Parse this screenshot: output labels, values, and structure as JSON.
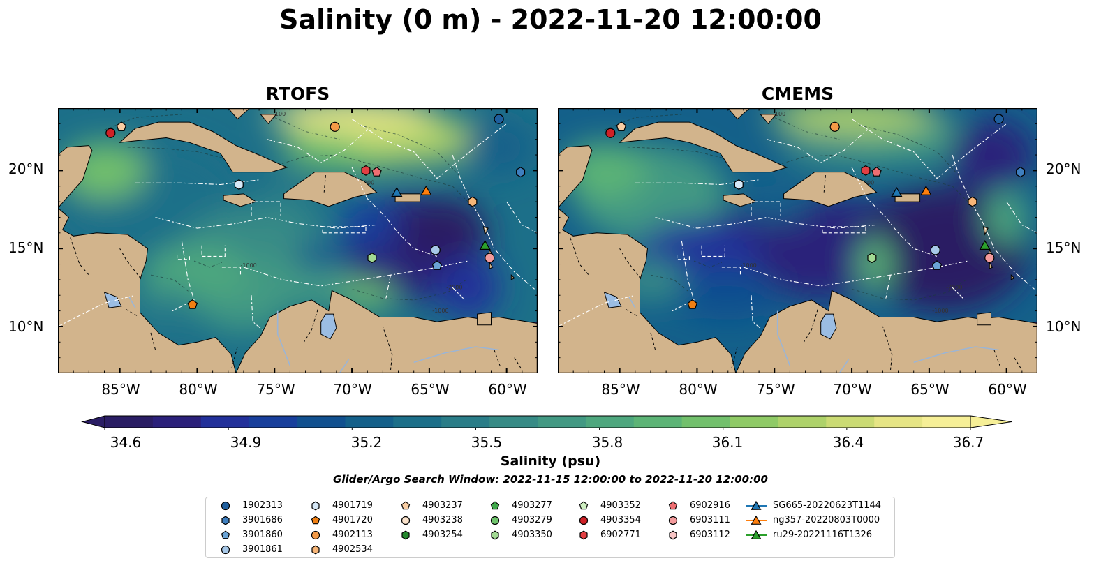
{
  "title": "Salinity (0 m) - 2022-11-20 12:00:00",
  "panels": [
    {
      "title": "RTOFS"
    },
    {
      "title": "CMEMS"
    }
  ],
  "axes": {
    "lat_labels": [
      "20°N",
      "15°N",
      "10°N"
    ],
    "lon_labels": [
      "85°W",
      "80°W",
      "75°W",
      "70°W",
      "65°W",
      "60°W"
    ]
  },
  "colorbar": {
    "label": "Salinity (psu)",
    "ticks": [
      "34.6",
      "34.9",
      "35.2",
      "35.5",
      "35.8",
      "36.1",
      "36.4",
      "36.7"
    ],
    "range": [
      34.6,
      36.7
    ],
    "extend": "both",
    "colormap": "haline",
    "colors": [
      "#2a1d64",
      "#2b207a",
      "#22309a",
      "#183f9c",
      "#11508f",
      "#14608a",
      "#1c6f89",
      "#2a7d88",
      "#378b86",
      "#429983",
      "#4ea77e",
      "#5cb476",
      "#72c06c",
      "#8fca66",
      "#aed26a",
      "#cbdb74",
      "#e6e585",
      "#f6ef97"
    ]
  },
  "search_window": "Glider/Argo Search Window: 2022-11-15 12:00:00 to 2022-11-20 12:00:00",
  "legend": [
    {
      "label": "1902313",
      "marker": "circle",
      "color": "#1f5f9e"
    },
    {
      "label": "3901686",
      "marker": "hexagon",
      "color": "#3f7fbf"
    },
    {
      "label": "3901860",
      "marker": "pentagon",
      "color": "#6aa3d5"
    },
    {
      "label": "3901861",
      "marker": "circle",
      "color": "#a7c8e8"
    },
    {
      "label": "4901719",
      "marker": "hexagon",
      "color": "#d6e8f7"
    },
    {
      "label": "4901720",
      "marker": "pentagon",
      "color": "#f07f12"
    },
    {
      "label": "4902113",
      "marker": "circle",
      "color": "#f39a47"
    },
    {
      "label": "4902534",
      "marker": "hexagon",
      "color": "#f7b577"
    },
    {
      "label": "4903237",
      "marker": "pentagon",
      "color": "#f8cda3"
    },
    {
      "label": "4903238",
      "marker": "circle",
      "color": "#fbe3cc"
    },
    {
      "label": "4903254",
      "marker": "hexagon",
      "color": "#24882e"
    },
    {
      "label": "4903277",
      "marker": "pentagon",
      "color": "#3fa84a"
    },
    {
      "label": "4903279",
      "marker": "circle",
      "color": "#6fc46c"
    },
    {
      "label": "4903350",
      "marker": "hexagon",
      "color": "#a2da93"
    },
    {
      "label": "4903352",
      "marker": "pentagon",
      "color": "#cdeec0"
    },
    {
      "label": "4903354",
      "marker": "circle",
      "color": "#cf2127"
    },
    {
      "label": "6902771",
      "marker": "hexagon",
      "color": "#e23f43"
    },
    {
      "label": "6902916",
      "marker": "pentagon",
      "color": "#ee6e72"
    },
    {
      "label": "6903111",
      "marker": "circle",
      "color": "#f49b9c"
    },
    {
      "label": "6903112",
      "marker": "hexagon",
      "color": "#f9c6c6"
    },
    {
      "label": "SG665-20220623T1144",
      "marker": "triangle-line",
      "color": "#1f77b4"
    },
    {
      "label": "ng357-20220803T0000",
      "marker": "triangle-line",
      "color": "#ff7f0e"
    },
    {
      "label": "ru29-20221116T1326",
      "marker": "triangle-line",
      "color": "#2ca02c"
    }
  ],
  "map_extent": {
    "lon": [
      -89,
      -58
    ],
    "lat": [
      7,
      24
    ]
  },
  "observations": [
    {
      "id": "1902313",
      "lon": -60.5,
      "lat": 23.3
    },
    {
      "id": "3901686",
      "lon": -59.1,
      "lat": 19.9
    },
    {
      "id": "3901861",
      "lon": -64.6,
      "lat": 14.9
    },
    {
      "id": "3901860",
      "lon": -64.5,
      "lat": 13.9
    },
    {
      "id": "4901719",
      "lon": -77.3,
      "lat": 19.1
    },
    {
      "id": "4901720",
      "lon": -80.3,
      "lat": 11.4
    },
    {
      "id": "4902113",
      "lon": -71.1,
      "lat": 22.8
    },
    {
      "id": "4902534",
      "lon": -62.2,
      "lat": 18.0
    },
    {
      "id": "4903237",
      "lon": -84.9,
      "lat": 22.8
    },
    {
      "id": "4903350",
      "lon": -68.7,
      "lat": 14.4
    },
    {
      "id": "4903354",
      "lon": -85.6,
      "lat": 22.4
    },
    {
      "id": "6902771",
      "lon": -69.1,
      "lat": 20.0
    },
    {
      "id": "6902916",
      "lon": -68.4,
      "lat": 19.9
    },
    {
      "id": "6903111",
      "lon": -61.1,
      "lat": 14.4
    },
    {
      "id": "SG665-20220623T1144",
      "lon": -67.1,
      "lat": 18.6
    },
    {
      "id": "ng357-20220803T0000",
      "lon": -65.2,
      "lat": 18.7
    },
    {
      "id": "ru29-20221116T1326",
      "lon": -61.4,
      "lat": 15.2
    }
  ]
}
